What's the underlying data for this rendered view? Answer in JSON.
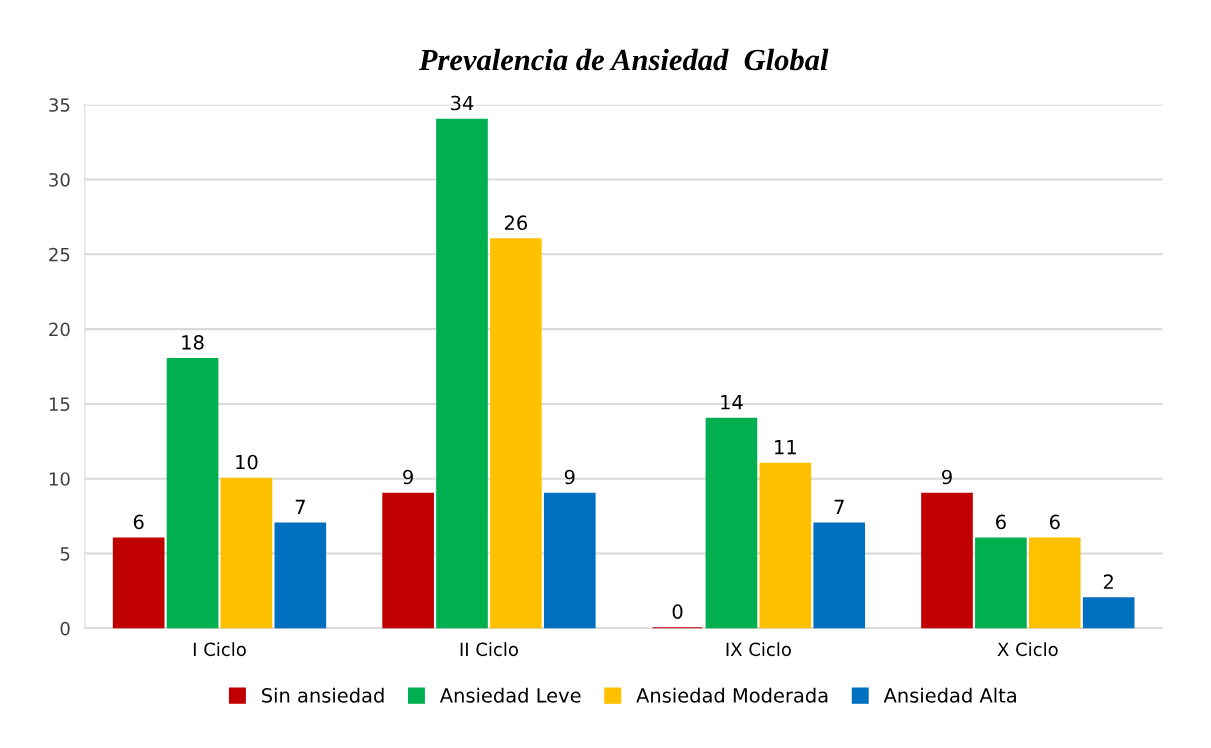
{
  "chart_data": {
    "type": "bar",
    "title": "Prevalencia de Ansiedad  Global",
    "categories": [
      "I Ciclo",
      "II Ciclo",
      "IX Ciclo",
      "X Ciclo"
    ],
    "series": [
      {
        "name": "Sin ansiedad",
        "color": "#c00000",
        "values": [
          6,
          9,
          0,
          9
        ]
      },
      {
        "name": "Ansiedad Leve",
        "color": "#00b050",
        "values": [
          18,
          34,
          14,
          6
        ]
      },
      {
        "name": "Ansiedad Moderada",
        "color": "#ffc000",
        "values": [
          10,
          26,
          11,
          6
        ]
      },
      {
        "name": "Ansiedad Alta",
        "color": "#0070c0",
        "values": [
          7,
          9,
          7,
          2
        ]
      }
    ],
    "ylim": [
      0,
      35
    ],
    "yticks": [
      0,
      5,
      10,
      15,
      20,
      25,
      30,
      35
    ],
    "grid": "y",
    "legend": "bottom",
    "data_labels": true
  }
}
